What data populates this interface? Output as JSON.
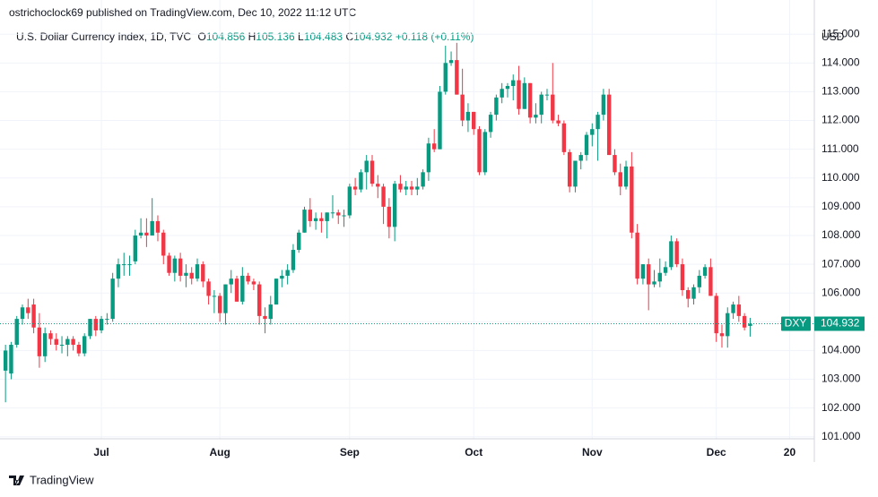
{
  "chart_data": {
    "type": "candlestick",
    "publisher_line": "ostrichoclock69 published on TradingView.com, Dec 10, 2022 11:12 UTC",
    "title": "U.S. Dollar Currency Index, 1D, TVC",
    "ohlc_letters": [
      "O",
      "H",
      "L",
      "C"
    ],
    "change_label": "+0.118 (+0.11%)",
    "currency": "USD",
    "symbol": "DXY",
    "brand": "TradingView",
    "up_color": "#089981",
    "down_color": "#f23645",
    "grid": true,
    "categories": [
      null,
      null,
      null,
      null,
      null,
      null,
      null,
      null,
      null,
      null,
      null,
      null,
      null,
      null,
      null,
      null,
      null,
      "Jul",
      null,
      null,
      null,
      null,
      null,
      null,
      null,
      null,
      null,
      null,
      null,
      null,
      null,
      null,
      null,
      null,
      null,
      null,
      null,
      null,
      "Aug",
      null,
      null,
      null,
      null,
      null,
      null,
      null,
      null,
      null,
      null,
      null,
      null,
      null,
      null,
      null,
      null,
      null,
      null,
      null,
      null,
      null,
      null,
      "Sep",
      null,
      null,
      null,
      null,
      null,
      null,
      null,
      null,
      null,
      null,
      null,
      null,
      null,
      null,
      null,
      null,
      null,
      null,
      null,
      null,
      null,
      "Oct",
      null,
      null,
      null,
      null,
      null,
      null,
      null,
      null,
      null,
      null,
      null,
      null,
      null,
      null,
      null,
      null,
      null,
      null,
      null,
      null,
      "Nov",
      null,
      null,
      null,
      null,
      null,
      null,
      null,
      null,
      null,
      null,
      null,
      null,
      null,
      null,
      null,
      null,
      null,
      null,
      null,
      null,
      null,
      "Dec",
      null,
      null,
      null,
      null,
      null,
      null,
      null,
      null,
      null,
      null,
      null,
      null,
      "20",
      null,
      null,
      null
    ],
    "open": [
      103.3,
      103.2,
      104.2,
      105.1,
      105.5,
      105.6,
      104.8,
      103.8,
      104.6,
      104.4,
      104.2,
      104.2,
      104.4,
      104.2,
      103.9,
      104.5,
      105.1,
      104.7,
      105.1,
      105.1,
      106.5,
      107.0,
      107.0,
      107.1,
      108.0,
      108.1,
      108.0,
      108.5,
      108.1,
      107.3,
      106.7,
      107.2,
      106.6,
      106.7,
      106.5,
      107.0,
      106.4,
      105.9,
      105.9,
      105.3,
      106.3,
      106.5,
      105.7,
      106.6,
      106.4,
      106.3,
      105.2,
      105.1,
      105.6,
      106.5,
      106.6,
      106.8,
      107.5,
      108.1,
      108.9,
      108.5,
      108.6,
      108.5,
      108.8,
      108.8,
      108.7,
      108.7,
      109.7,
      109.6,
      110.2,
      110.6,
      109.8,
      109.7,
      109.0,
      108.3,
      109.8,
      109.6,
      109.7,
      109.6,
      109.7,
      110.2,
      111.2,
      111.0,
      113.0,
      114.0,
      114.1,
      112.9,
      112.0,
      112.3,
      111.7,
      110.2,
      111.6,
      112.2,
      112.8,
      113.1,
      113.2,
      113.4,
      112.4,
      113.3,
      112.1,
      112.2,
      112.9,
      112.9,
      112.0,
      111.9,
      110.9,
      109.7,
      110.6,
      110.8,
      111.5,
      111.7,
      112.2,
      112.9,
      110.8,
      110.2,
      109.7,
      110.4,
      108.1,
      106.5,
      107.0,
      106.3,
      106.4,
      106.7,
      106.9,
      107.8,
      107.0,
      106.1,
      105.8,
      106.2,
      106.6,
      106.9,
      105.9,
      104.6,
      104.5,
      105.3,
      105.6,
      105.2,
      104.856,
      null,
      null,
      null,
      null,
      null,
      null,
      null,
      null,
      null,
      null
    ],
    "high": [
      104.2,
      104.3,
      105.2,
      105.6,
      105.8,
      105.8,
      105.3,
      104.8,
      104.7,
      104.6,
      104.5,
      104.5,
      104.5,
      104.3,
      104.6,
      105.1,
      105.2,
      105.2,
      105.3,
      106.7,
      107.2,
      107.4,
      107.3,
      108.2,
      108.6,
      108.6,
      109.3,
      108.7,
      108.2,
      107.4,
      107.3,
      107.4,
      107.0,
      106.9,
      107.2,
      107.1,
      106.5,
      106.1,
      106.0,
      106.3,
      106.8,
      106.6,
      106.9,
      106.7,
      106.5,
      106.4,
      105.5,
      105.9,
      106.5,
      106.8,
      107.0,
      107.7,
      108.2,
      109.0,
      109.3,
      108.8,
      108.8,
      108.8,
      109.4,
      108.9,
      108.9,
      109.8,
      110.0,
      110.3,
      110.8,
      110.8,
      110.1,
      109.8,
      109.3,
      109.9,
      110.1,
      109.9,
      109.9,
      110.0,
      110.3,
      111.4,
      111.7,
      113.2,
      114.6,
      114.4,
      114.7,
      113.8,
      112.6,
      112.3,
      111.8,
      111.7,
      112.3,
      112.9,
      113.3,
      113.3,
      113.6,
      113.9,
      113.5,
      113.3,
      112.6,
      113.0,
      113.1,
      114.0,
      112.2,
      112.0,
      111.0,
      110.6,
      110.9,
      111.6,
      111.9,
      112.3,
      113.1,
      113.1,
      111.0,
      110.5,
      110.6,
      110.9,
      108.4,
      107.0,
      107.2,
      106.8,
      107.2,
      107.1,
      108.0,
      107.9,
      107.2,
      106.2,
      106.3,
      106.8,
      107.0,
      107.2,
      106.0,
      104.9,
      105.5,
      105.7,
      105.9,
      105.3,
      105.136,
      null,
      null,
      null,
      null,
      null,
      null,
      null,
      null,
      null,
      null
    ],
    "low": [
      102.2,
      103.0,
      104.1,
      104.9,
      105.1,
      104.6,
      103.4,
      103.6,
      104.2,
      104.0,
      103.9,
      103.8,
      104.0,
      103.8,
      103.8,
      104.4,
      104.5,
      104.6,
      104.9,
      105.0,
      106.2,
      106.6,
      106.6,
      107.0,
      107.9,
      107.6,
      108.0,
      107.8,
      107.0,
      106.6,
      106.4,
      106.4,
      106.2,
      106.3,
      106.4,
      106.2,
      105.6,
      105.3,
      105.0,
      104.9,
      106.0,
      105.7,
      105.6,
      106.3,
      106.1,
      104.9,
      104.6,
      104.9,
      105.6,
      106.2,
      106.3,
      106.7,
      107.4,
      108.1,
      108.3,
      108.2,
      108.1,
      107.9,
      108.6,
      108.4,
      108.3,
      108.6,
      109.4,
      109.5,
      109.6,
      109.7,
      109.3,
      108.4,
      107.9,
      107.8,
      109.5,
      109.4,
      109.4,
      109.4,
      109.6,
      109.9,
      110.9,
      111.0,
      112.9,
      113.9,
      112.9,
      111.8,
      111.6,
      111.5,
      110.1,
      110.1,
      111.4,
      112.0,
      112.6,
      112.8,
      112.7,
      112.2,
      112.4,
      111.9,
      111.9,
      111.9,
      112.7,
      111.9,
      111.8,
      110.8,
      109.5,
      109.5,
      110.3,
      110.6,
      111.1,
      110.6,
      112.0,
      110.8,
      110.1,
      109.4,
      109.6,
      107.9,
      106.3,
      106.3,
      105.4,
      106.2,
      106.2,
      106.6,
      106.8,
      106.9,
      105.9,
      105.5,
      105.6,
      106.0,
      106.5,
      105.9,
      104.3,
      104.1,
      104.1,
      105.1,
      105.0,
      104.7,
      104.483,
      null,
      null,
      null,
      null,
      null,
      null,
      null,
      null,
      null,
      null
    ],
    "close": [
      104.0,
      104.2,
      105.1,
      105.5,
      105.3,
      104.8,
      103.8,
      104.6,
      104.4,
      104.2,
      104.2,
      104.4,
      104.2,
      103.9,
      104.5,
      105.1,
      104.7,
      105.1,
      105.1,
      106.5,
      107.0,
      107.0,
      107.0,
      108.0,
      108.1,
      108.0,
      108.5,
      108.1,
      107.3,
      106.7,
      107.2,
      106.6,
      106.7,
      106.5,
      107.0,
      106.4,
      105.9,
      105.9,
      105.3,
      106.3,
      106.5,
      105.7,
      106.6,
      106.4,
      106.3,
      105.2,
      105.1,
      105.6,
      106.5,
      106.6,
      106.8,
      107.5,
      108.1,
      108.9,
      108.5,
      108.6,
      108.5,
      108.8,
      108.8,
      108.7,
      108.7,
      109.7,
      109.6,
      110.2,
      110.6,
      109.8,
      109.7,
      109.0,
      108.3,
      109.8,
      109.6,
      109.7,
      109.6,
      109.7,
      110.2,
      111.2,
      111.0,
      113.0,
      114.0,
      114.1,
      112.9,
      112.0,
      112.3,
      111.7,
      110.2,
      111.6,
      112.2,
      112.8,
      113.1,
      113.2,
      113.4,
      112.4,
      113.3,
      112.1,
      112.2,
      112.9,
      112.9,
      112.0,
      111.9,
      110.9,
      109.7,
      110.6,
      110.8,
      111.5,
      111.7,
      112.2,
      112.9,
      110.8,
      110.2,
      109.7,
      110.4,
      108.1,
      106.5,
      107.0,
      106.3,
      106.4,
      106.7,
      106.9,
      107.8,
      107.0,
      106.1,
      105.8,
      106.2,
      106.6,
      106.9,
      105.9,
      104.6,
      104.5,
      105.3,
      105.6,
      105.2,
      104.8,
      104.932,
      null,
      null,
      null,
      null,
      null,
      null,
      null,
      null,
      null,
      null
    ],
    "ylim": [
      100.93,
      116.19
    ],
    "yticks": [
      {
        "value": 101,
        "label": "101.000"
      },
      {
        "value": 102,
        "label": "102.000"
      },
      {
        "value": 103,
        "label": "103.000"
      },
      {
        "value": 104,
        "label": "104.000"
      },
      {
        "value": 105,
        "label": "105.000"
      },
      {
        "value": 106,
        "label": "106.000"
      },
      {
        "value": 107,
        "label": "107.000"
      },
      {
        "value": 108,
        "label": "108.000"
      },
      {
        "value": 109,
        "label": "109.000"
      },
      {
        "value": 110,
        "label": "110.000"
      },
      {
        "value": 111,
        "label": "111.000"
      },
      {
        "value": 112,
        "label": "112.000"
      },
      {
        "value": 113,
        "label": "113.000"
      },
      {
        "value": 114,
        "label": "114.000"
      },
      {
        "value": 115,
        "label": "115.000"
      }
    ]
  }
}
